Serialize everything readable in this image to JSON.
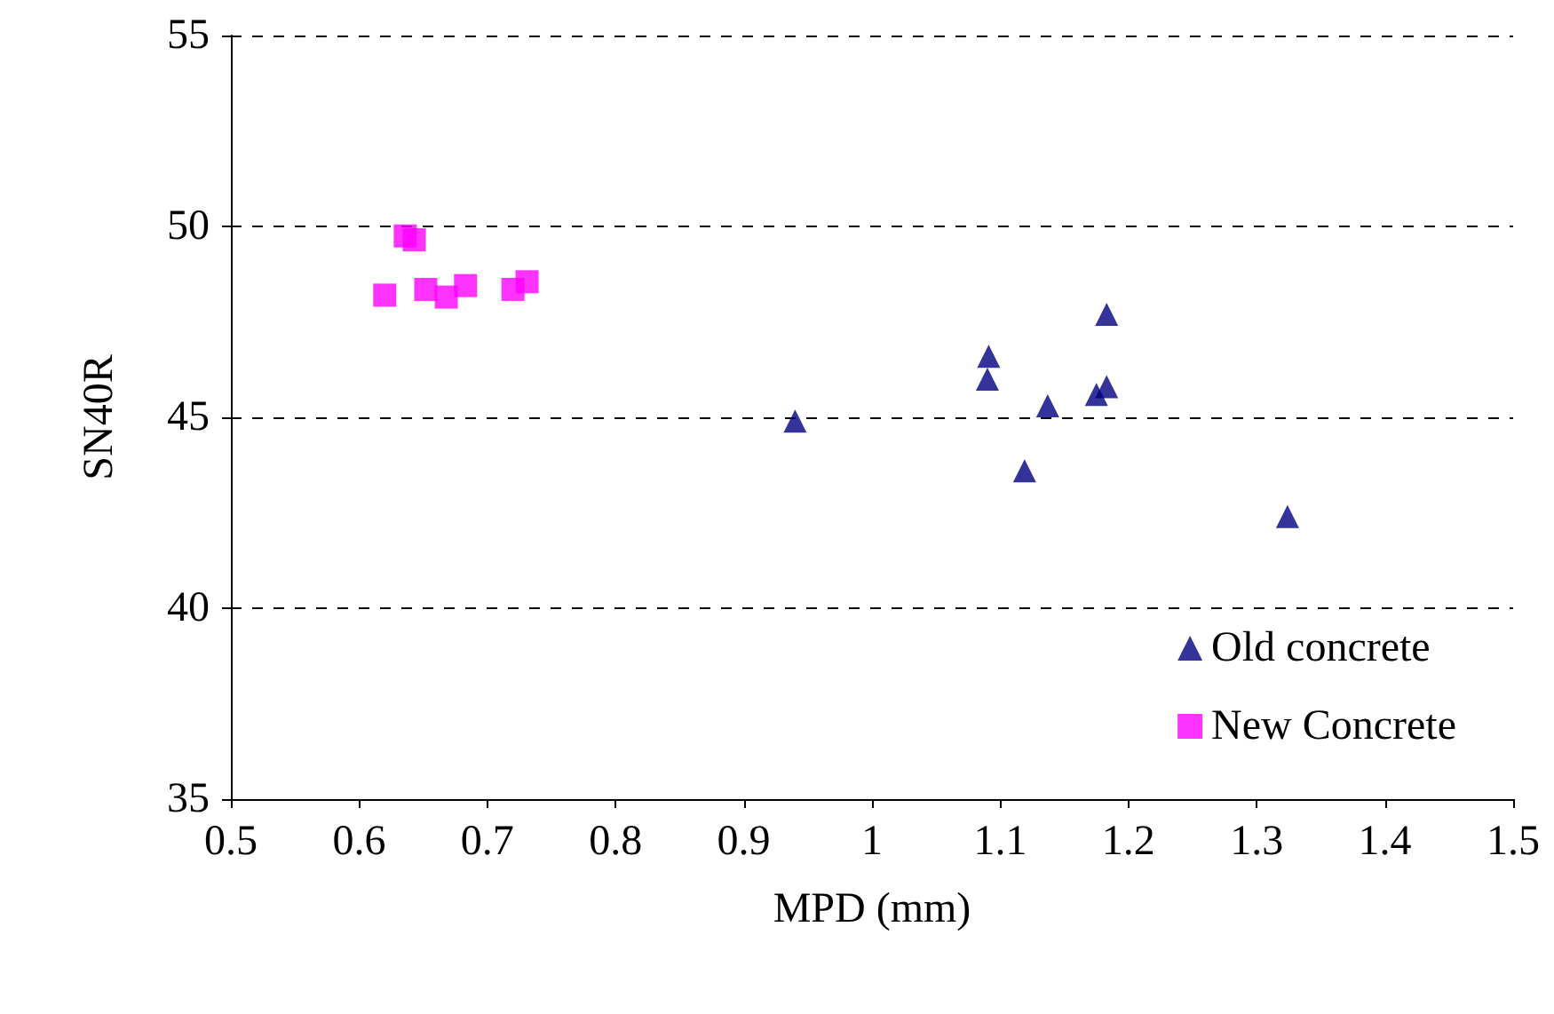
{
  "chart_data": {
    "type": "scatter",
    "xlabel": "MPD (mm)",
    "ylabel": "SN40R",
    "xlim": [
      0.5,
      1.5
    ],
    "xticks": [
      0.5,
      0.6,
      0.7,
      0.8,
      0.9,
      1,
      1.1,
      1.2,
      1.3,
      1.4,
      1.5
    ],
    "ylim": [
      35,
      55
    ],
    "yticks": [
      35,
      40,
      45,
      50,
      55
    ],
    "grid": "y",
    "legend": "bottom right",
    "series": [
      {
        "name": "Old concrete",
        "color": "#000080",
        "marker": "triangle",
        "x": [
          0.94,
          1.091,
          1.09,
          1.137,
          1.119,
          1.175,
          1.183,
          1.183,
          1.324
        ],
        "values": [
          44.9,
          46.6,
          46.0,
          45.3,
          43.6,
          45.6,
          45.8,
          47.7,
          42.4
        ]
      },
      {
        "name": "New Concrete",
        "color": "#ff00ff",
        "marker": "square",
        "x": [
          0.636,
          0.643,
          0.62,
          0.652,
          0.668,
          0.683,
          0.72,
          0.731
        ],
        "values": [
          49.75,
          49.65,
          48.2,
          48.35,
          48.15,
          48.45,
          48.35,
          48.55
        ]
      }
    ]
  }
}
